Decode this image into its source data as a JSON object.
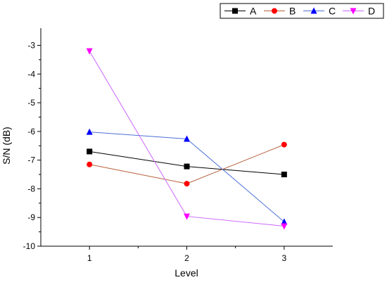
{
  "chart_data": {
    "type": "line",
    "xlabel": "Level",
    "ylabel": "S/N (dB)",
    "x": [
      1,
      2,
      3
    ],
    "x_tick_labels": [
      "1",
      "2",
      "3"
    ],
    "xlim": [
      0.5,
      3.5
    ],
    "ylim": [
      -10,
      -2.4
    ],
    "y_ticks": [
      -10,
      -9,
      -8,
      -7,
      -6,
      -5,
      -4,
      -3
    ],
    "y_tick_labels": [
      "-10",
      "-9",
      "-8",
      "-7",
      "-6",
      "-5",
      "-4",
      "-3"
    ],
    "grid": false,
    "legend_position": "top-right",
    "series": [
      {
        "name": "A",
        "values": [
          -6.7,
          -7.22,
          -7.5
        ],
        "color": "#000000",
        "line_color": "#000000",
        "marker": "square"
      },
      {
        "name": "B",
        "values": [
          -7.15,
          -7.82,
          -6.46
        ],
        "color": "#ff0000",
        "line_color": "#b5603a",
        "marker": "circle"
      },
      {
        "name": "C",
        "values": [
          -6.02,
          -6.26,
          -9.15
        ],
        "color": "#0000ff",
        "line_color": "#4a6fd8",
        "marker": "triangle-up"
      },
      {
        "name": "D",
        "values": [
          -3.2,
          -8.96,
          -9.3
        ],
        "color": "#ff00ff",
        "line_color": "#cc66ff",
        "marker": "triangle-down"
      }
    ]
  }
}
